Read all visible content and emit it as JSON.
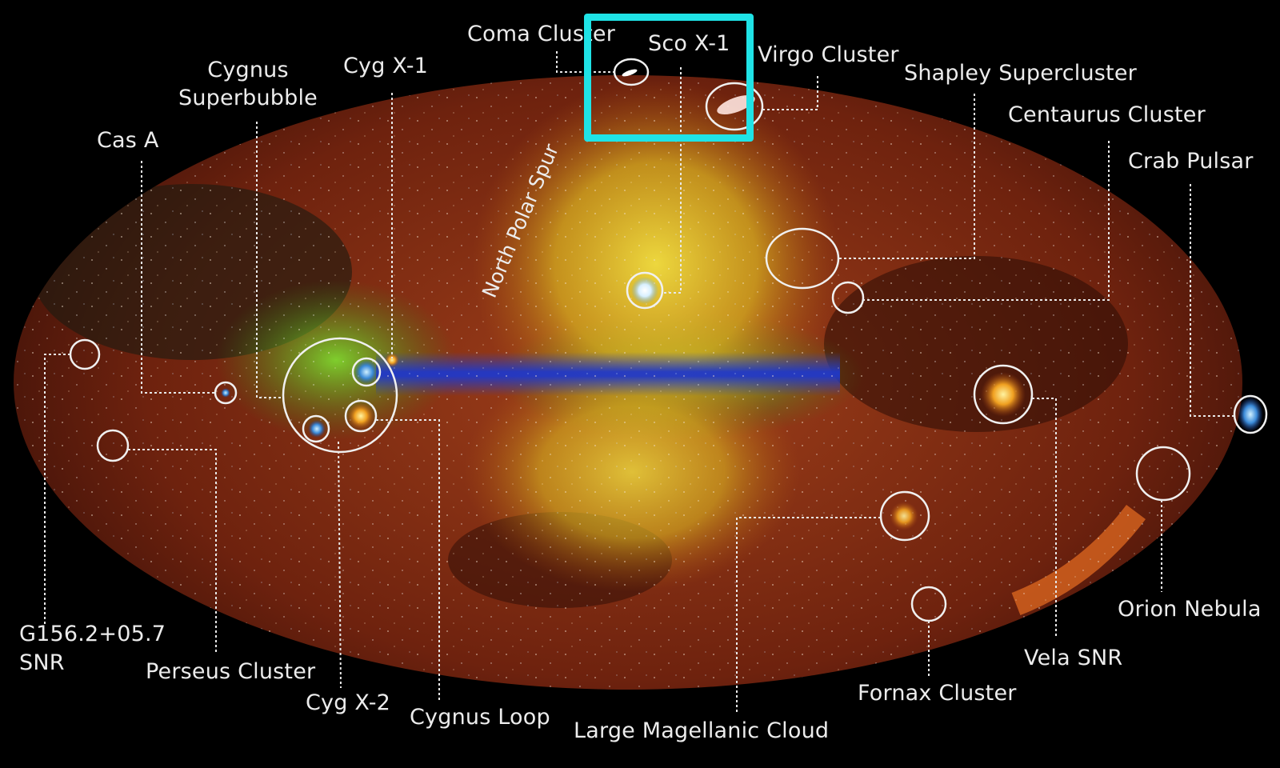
{
  "labels": {
    "coma": "Coma Cluster",
    "sco": "Sco X-1",
    "virgo": "Virgo Cluster",
    "shapley": "Shapley Supercluster",
    "centaurus": "Centaurus Cluster",
    "crab": "Crab Pulsar",
    "cygnus_sb_1": "Cygnus",
    "cygnus_sb_2": "Superbubble",
    "cygx1": "Cyg X-1",
    "casa": "Cas A",
    "nps": "North Polar Spur",
    "g156_1": "G156.2+05.7",
    "g156_2": "SNR",
    "perseus": "Perseus Cluster",
    "cygx2": "Cyg X-2",
    "cygloop": "Cygnus Loop",
    "lmc": "Large Magellanic Cloud",
    "fornax": "Fornax Cluster",
    "vela": "Vela SNR",
    "orion": "Orion Nebula"
  },
  "colors": {
    "highlight_box": "#1fe3e6",
    "background": "#000000",
    "label_text": "#ececec",
    "sky_red": "#8a2a10",
    "sky_yellow": "#e8d020",
    "sky_green": "#5bbf2a",
    "plane_blue": "#1f3fd0"
  }
}
